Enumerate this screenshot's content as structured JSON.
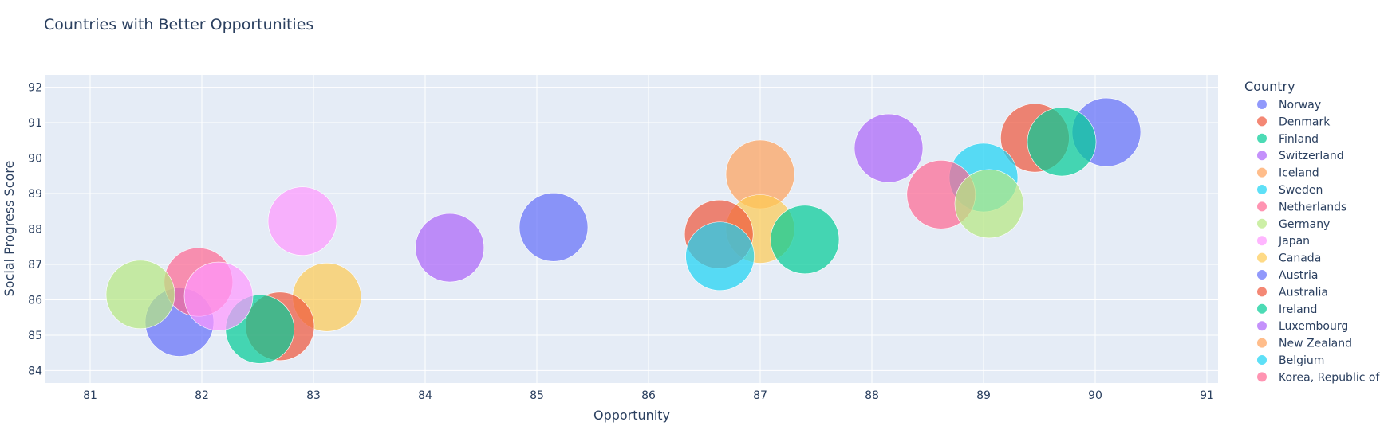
{
  "chart_data": {
    "type": "scatter",
    "title": "Countries with Better Opportunities",
    "xlabel": "Opportunity",
    "ylabel": "Social Progress Score",
    "xlim": [
      80.6,
      91.1
    ],
    "ylim": [
      83.65,
      92.35
    ],
    "x_ticks": [
      81,
      82,
      83,
      84,
      85,
      86,
      87,
      88,
      89,
      90,
      91
    ],
    "y_ticks": [
      84,
      85,
      86,
      87,
      88,
      89,
      90,
      91,
      92
    ],
    "grid": true,
    "marker_opacity": 0.7,
    "legend": {
      "title": "Country",
      "placement": "right"
    },
    "series": [
      {
        "name": "Norway",
        "color": "#636efa",
        "points": [
          {
            "x": 90.1,
            "y": 90.73
          }
        ]
      },
      {
        "name": "Denmark",
        "color": "#EF553B",
        "points": [
          {
            "x": 89.46,
            "y": 90.57
          }
        ]
      },
      {
        "name": "Finland",
        "color": "#00cc96",
        "points": [
          {
            "x": 89.7,
            "y": 90.46
          }
        ]
      },
      {
        "name": "Switzerland",
        "color": "#ab63fa",
        "points": [
          {
            "x": 88.15,
            "y": 90.28
          }
        ]
      },
      {
        "name": "Iceland",
        "color": "#FFA15A",
        "points": [
          {
            "x": 87.0,
            "y": 89.54
          }
        ]
      },
      {
        "name": "Sweden",
        "color": "#19d3f3",
        "points": [
          {
            "x": 89.0,
            "y": 89.45
          }
        ]
      },
      {
        "name": "Netherlands",
        "color": "#FF6692",
        "points": [
          {
            "x": 88.62,
            "y": 88.97
          }
        ]
      },
      {
        "name": "Germany",
        "color": "#B6E880",
        "points": [
          {
            "x": 89.05,
            "y": 88.71
          }
        ]
      },
      {
        "name": "Japan",
        "color": "#FF97FF",
        "points": [
          {
            "x": 82.9,
            "y": 88.22
          }
        ]
      },
      {
        "name": "Canada",
        "color": "#FECB52",
        "points": [
          {
            "x": 87.0,
            "y": 88.0
          },
          {
            "x": 83.12,
            "y": 86.07
          }
        ]
      },
      {
        "name": "Austria",
        "color": "#636efa",
        "points": [
          {
            "x": 85.15,
            "y": 88.05
          },
          {
            "x": 81.8,
            "y": 85.37
          }
        ]
      },
      {
        "name": "Australia",
        "color": "#EF553B",
        "points": [
          {
            "x": 86.63,
            "y": 87.85
          },
          {
            "x": 82.7,
            "y": 85.25
          }
        ]
      },
      {
        "name": "Ireland",
        "color": "#00cc96",
        "points": [
          {
            "x": 87.4,
            "y": 87.7
          },
          {
            "x": 82.52,
            "y": 85.17
          }
        ]
      },
      {
        "name": "Luxembourg",
        "color": "#ab63fa",
        "points": [
          {
            "x": 84.22,
            "y": 87.47
          }
        ]
      },
      {
        "name": "New Zealand",
        "color": "#FFA15A",
        "points": []
      },
      {
        "name": "Belgium",
        "color": "#19d3f3",
        "points": [
          {
            "x": 86.64,
            "y": 87.23
          }
        ]
      },
      {
        "name": "Korea, Republic of",
        "color": "#FF6692",
        "points": [
          {
            "x": 81.97,
            "y": 86.5
          }
        ]
      },
      {
        "name": "",
        "color": "#B6E880",
        "points": [
          {
            "x": 81.45,
            "y": 86.15
          }
        ]
      },
      {
        "name": "",
        "color": "#FF97FF",
        "points": [
          {
            "x": 82.15,
            "y": 86.1
          }
        ]
      }
    ]
  }
}
